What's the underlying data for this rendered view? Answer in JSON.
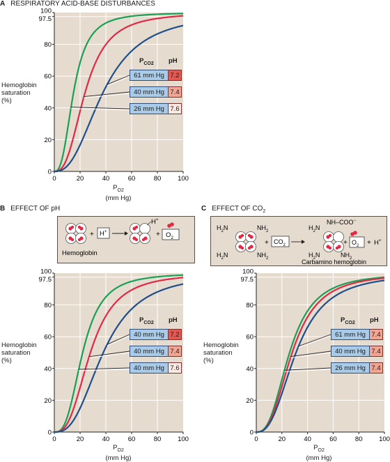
{
  "panels": {
    "A": {
      "letter": "A",
      "title": "RESPIRATORY ACID-BASE DISTURBANCES"
    },
    "B": {
      "letter": "B",
      "title": "EFFECT OF pH"
    },
    "C": {
      "letter": "C",
      "title": "EFFECT OF CO",
      "title_sub": "2"
    }
  },
  "axis_text": {
    "ylabel_lines": [
      "Hemoglobin",
      "saturation",
      "(%)"
    ],
    "xlabel_main": "P",
    "xlabel_sub": "O2",
    "xlabel_unit": "(mm Hg)",
    "legend_head_p": "P",
    "legend_head_p_sub": "CO2",
    "legend_head_ph": "pH"
  },
  "scheme_b": {
    "hemoglobin_label": "Hemoglobin",
    "h_plus": "H",
    "h_plus_sup": "+",
    "o2": "O",
    "o2_sub": "2",
    "plus": "+"
  },
  "scheme_c": {
    "nh2": "NH",
    "nh2_sub": "2",
    "h2n": "H",
    "h2n_rest": "N",
    "h2n_sub": "2",
    "co2": "CO",
    "co2_sub": "2",
    "nh_coo": "NH–COO",
    "nh_coo_sup": "−",
    "o2": "O",
    "o2_sub": "2",
    "h_plus": "H",
    "h_plus_sup": "+",
    "carbamino_label": "Carbamino hemoglobin",
    "plus": "+"
  },
  "colors": {
    "green": "#1aa055",
    "red": "#e02a45",
    "blue": "#1f4f8a",
    "plot_bg": "#e6dbcf",
    "grid": "#ffffff",
    "box_blue": "#a9cbe8",
    "box_red": "#e8574e",
    "box_salmon": "#f3a594",
    "box_light": "#fbe9e4"
  },
  "chart_data": [
    {
      "type": "line",
      "panel": "A",
      "title": "RESPIRATORY ACID-BASE DISTURBANCES",
      "xlabel": "PO2 (mm Hg)",
      "ylabel": "Hemoglobin saturation (%)",
      "xlim": [
        0,
        100
      ],
      "ylim": [
        0,
        100
      ],
      "xticks": [
        0,
        20,
        40,
        60,
        80,
        100
      ],
      "yticks": [
        0,
        20,
        40,
        60,
        80,
        97.5,
        100
      ],
      "grid": true,
      "series": [
        {
          "pco2": "26 mm Hg",
          "ph": "7.6",
          "color": "green",
          "p50": 15,
          "n": 2.7
        },
        {
          "pco2": "40 mm Hg",
          "ph": "7.4",
          "color": "red",
          "p50": 24,
          "n": 2.7
        },
        {
          "pco2": "61 mm Hg",
          "ph": "7.2",
          "color": "blue",
          "p50": 38,
          "n": 2.5
        }
      ],
      "legend": [
        {
          "pco2": "61 mm Hg",
          "ph": "7.2",
          "ph_color": "box_red",
          "curve": "blue"
        },
        {
          "pco2": "40 mm Hg",
          "ph": "7.4",
          "ph_color": "box_salmon",
          "curve": "red"
        },
        {
          "pco2": "26 mm Hg",
          "ph": "7.6",
          "ph_color": "box_light",
          "curve": "green"
        }
      ]
    },
    {
      "type": "line",
      "panel": "B",
      "title": "EFFECT OF pH",
      "xlabel": "PO2 (mm Hg)",
      "ylabel": "Hemoglobin saturation (%)",
      "xlim": [
        0,
        100
      ],
      "ylim": [
        0,
        100
      ],
      "xticks": [
        0,
        20,
        40,
        60,
        80,
        100
      ],
      "yticks": [
        0,
        20,
        40,
        60,
        80,
        97.5,
        100
      ],
      "grid": true,
      "series": [
        {
          "pco2": "40 mm Hg",
          "ph": "7.6",
          "color": "green",
          "p50": 22,
          "n": 2.9
        },
        {
          "pco2": "40 mm Hg",
          "ph": "7.4",
          "color": "red",
          "p50": 28,
          "n": 2.8
        },
        {
          "pco2": "40 mm Hg",
          "ph": "7.2",
          "color": "blue",
          "p50": 38,
          "n": 2.7
        }
      ],
      "legend": [
        {
          "pco2": "40 mm Hg",
          "ph": "7.2",
          "ph_color": "box_red",
          "curve": "blue"
        },
        {
          "pco2": "40 mm Hg",
          "ph": "7.4",
          "ph_color": "box_salmon",
          "curve": "red"
        },
        {
          "pco2": "40 mm Hg",
          "ph": "7.6",
          "ph_color": "box_light",
          "curve": "green"
        }
      ]
    },
    {
      "type": "line",
      "panel": "C",
      "title": "EFFECT OF CO2",
      "xlabel": "PO2 (mm Hg)",
      "ylabel": "Hemoglobin saturation (%)",
      "xlim": [
        0,
        100
      ],
      "ylim": [
        0,
        100
      ],
      "xticks": [
        0,
        20,
        40,
        60,
        80,
        100
      ],
      "yticks": [
        0,
        20,
        40,
        60,
        80,
        97.5,
        100
      ],
      "grid": true,
      "series": [
        {
          "pco2": "26 mm Hg",
          "ph": "7.4",
          "color": "green",
          "p50": 26,
          "n": 2.7
        },
        {
          "pco2": "40 mm Hg",
          "ph": "7.4",
          "color": "red",
          "p50": 28,
          "n": 2.7
        },
        {
          "pco2": "61 mm Hg",
          "ph": "7.4",
          "color": "blue",
          "p50": 31,
          "n": 2.6
        }
      ],
      "legend": [
        {
          "pco2": "61 mm Hg",
          "ph": "7.4",
          "ph_color": "box_salmon",
          "curve": "blue"
        },
        {
          "pco2": "40 mm Hg",
          "ph": "7.4",
          "ph_color": "box_salmon",
          "curve": "red"
        },
        {
          "pco2": "26 mm Hg",
          "ph": "7.4",
          "ph_color": "box_salmon",
          "curve": "green"
        }
      ]
    }
  ]
}
